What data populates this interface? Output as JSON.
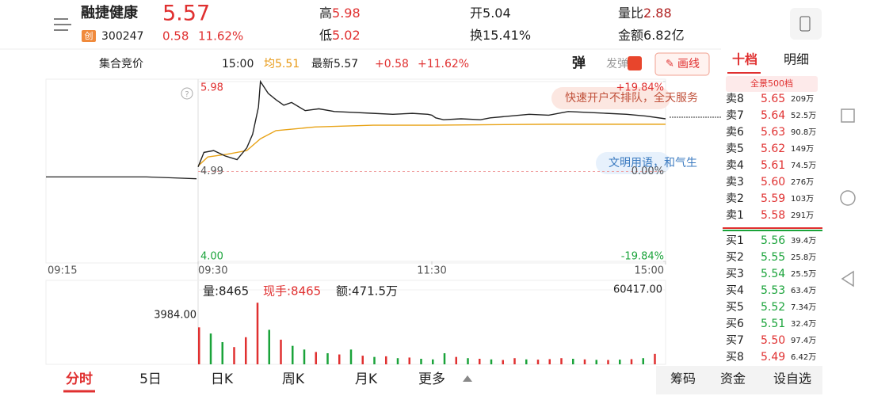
{
  "header": {
    "name": "融捷健康",
    "price": "5.57",
    "board": "创",
    "code": "300247",
    "change": "0.58",
    "change_pct": "11.62%",
    "stats": [
      [
        "高",
        "5.98"
      ],
      [
        "低",
        "5.02"
      ],
      [
        "开",
        "5.04"
      ],
      [
        "换",
        "15.41%"
      ],
      [
        "量比",
        "2.88"
      ],
      [
        "金额",
        "6.82亿"
      ]
    ]
  },
  "toolbar": {
    "session": "集合竞价",
    "time": "15:00",
    "avg_label": "均",
    "avg": "5.51",
    "latest_label": "最新",
    "latest": "5.57",
    "change": "+0.58",
    "change_pct": "+11.62%",
    "danmaku": "弹",
    "send": "发弹",
    "draw": "画线"
  },
  "banners": [
    "快速开户不排队，全天服务",
    "文明用语，和气生"
  ],
  "order_book": {
    "tabs": [
      "十档",
      "明细"
    ],
    "depth_button": "全景500档",
    "asks": [
      [
        "卖8",
        "5.65",
        "209万"
      ],
      [
        "卖7",
        "5.64",
        "52.5万"
      ],
      [
        "卖6",
        "5.63",
        "90.8万"
      ],
      [
        "卖5",
        "5.62",
        "149万"
      ],
      [
        "卖4",
        "5.61",
        "74.5万"
      ],
      [
        "卖3",
        "5.60",
        "276万"
      ],
      [
        "卖2",
        "5.59",
        "103万"
      ],
      [
        "卖1",
        "5.58",
        "291万"
      ]
    ],
    "bids": [
      [
        "买1",
        "5.56",
        "39.4万"
      ],
      [
        "买2",
        "5.55",
        "25.8万"
      ],
      [
        "买3",
        "5.54",
        "25.5万"
      ],
      [
        "买4",
        "5.53",
        "63.4万"
      ],
      [
        "买5",
        "5.52",
        "7.34万"
      ],
      [
        "买6",
        "5.51",
        "32.4万"
      ],
      [
        "买7",
        "5.50",
        "97.4万"
      ],
      [
        "买8",
        "5.49",
        "6.42万"
      ]
    ]
  },
  "chart_data": [
    {
      "type": "line",
      "auction_label": "09:15",
      "auction_values": [
        4.93,
        4.93,
        4.93,
        4.93,
        4.93,
        4.92,
        4.91
      ],
      "xlim": [
        0,
        240
      ],
      "xticks": [
        {
          "value": 0,
          "label": "09:30"
        },
        {
          "value": 120,
          "label": "11:30"
        },
        {
          "value": 240,
          "label": "15:00"
        }
      ],
      "ylim": [
        4,
        5.98
      ],
      "yticks": [
        5.98,
        4.99,
        {
          "value": 4,
          "label": "4.00"
        }
      ],
      "y2lim": [
        -19.84,
        19.84
      ],
      "y2ticks": [
        {
          "value": 19.84,
          "label": "+19.84%"
        },
        {
          "value": 0,
          "label": "0.00%"
        },
        {
          "value": -19.84,
          "label": "-19.84%"
        }
      ],
      "series": [
        {
          "color": "#222222",
          "x": [
            0,
            3,
            8,
            14,
            20,
            25,
            28,
            31,
            32,
            36,
            40,
            44,
            48,
            55,
            62,
            70,
            80,
            90,
            100,
            110,
            118,
            120,
            122,
            126,
            135,
            145,
            150,
            160,
            170,
            180,
            190,
            200,
            210,
            220,
            230,
            240
          ],
          "values": [
            5.04,
            5.2,
            5.22,
            5.16,
            5.12,
            5.25,
            5.4,
            5.7,
            5.98,
            5.85,
            5.78,
            5.72,
            5.75,
            5.66,
            5.68,
            5.65,
            5.64,
            5.63,
            5.62,
            5.63,
            5.62,
            5.61,
            5.58,
            5.56,
            5.57,
            5.56,
            5.58,
            5.6,
            5.62,
            5.61,
            5.65,
            5.64,
            5.63,
            5.62,
            5.6,
            5.57
          ]
        },
        {
          "color": "#e8a317",
          "x": [
            0,
            5,
            15,
            25,
            32,
            40,
            60,
            90,
            120,
            180,
            240
          ],
          "values": [
            5.05,
            5.15,
            5.18,
            5.22,
            5.35,
            5.44,
            5.48,
            5.5,
            5.5,
            5.51,
            5.51
          ]
        }
      ]
    },
    {
      "type": "bar",
      "volume": "量:8465",
      "hand": "现手:8465",
      "amount": "额:471.5万",
      "auction_volume_label": "3984.00",
      "xlim": [
        0,
        240
      ],
      "ylim": [
        0,
        60417
      ],
      "yticks": [
        {
          "value": 60417,
          "label": "60417.00"
        }
      ],
      "x": [
        0,
        6,
        12,
        18,
        24,
        30,
        36,
        42,
        48,
        54,
        60,
        66,
        72,
        78,
        84,
        90,
        96,
        102,
        108,
        114,
        120,
        126,
        132,
        138,
        144,
        150,
        156,
        162,
        168,
        174,
        180,
        186,
        192,
        198,
        204,
        210,
        216,
        222,
        228,
        234
      ],
      "values": [
        30000,
        25000,
        18000,
        14000,
        22000,
        50000,
        28000,
        20000,
        15000,
        12000,
        10000,
        9000,
        8000,
        12000,
        7000,
        6000,
        6500,
        5000,
        5500,
        4500,
        4000,
        9000,
        6000,
        5000,
        4500,
        4000,
        3500,
        5000,
        4000,
        3800,
        4200,
        5000,
        4500,
        4000,
        3600,
        3500,
        3800,
        4200,
        5000,
        8465
      ],
      "colors": [
        "#e03030",
        "#1aa33a",
        "#1aa33a",
        "#e03030",
        "#e03030",
        "#e03030",
        "#1aa33a",
        "#e03030",
        "#1aa33a",
        "#1aa33a",
        "#e03030",
        "#1aa33a",
        "#e03030",
        "#1aa33a",
        "#e03030",
        "#1aa33a",
        "#e03030",
        "#1aa33a",
        "#e03030",
        "#1aa33a",
        "#1aa33a",
        "#1aa33a",
        "#e03030",
        "#1aa33a",
        "#e03030",
        "#1aa33a",
        "#e03030",
        "#e03030",
        "#1aa33a",
        "#e03030",
        "#e03030",
        "#e03030",
        "#1aa33a",
        "#e03030",
        "#1aa33a",
        "#e03030",
        "#1aa33a",
        "#e03030",
        "#1aa33a",
        "#e03030"
      ]
    }
  ],
  "bottom_tabs": [
    "分时",
    "5日",
    "日K",
    "周K",
    "月K",
    "更多"
  ],
  "bottom_buttons": [
    "筹码",
    "资金",
    "设自选"
  ]
}
